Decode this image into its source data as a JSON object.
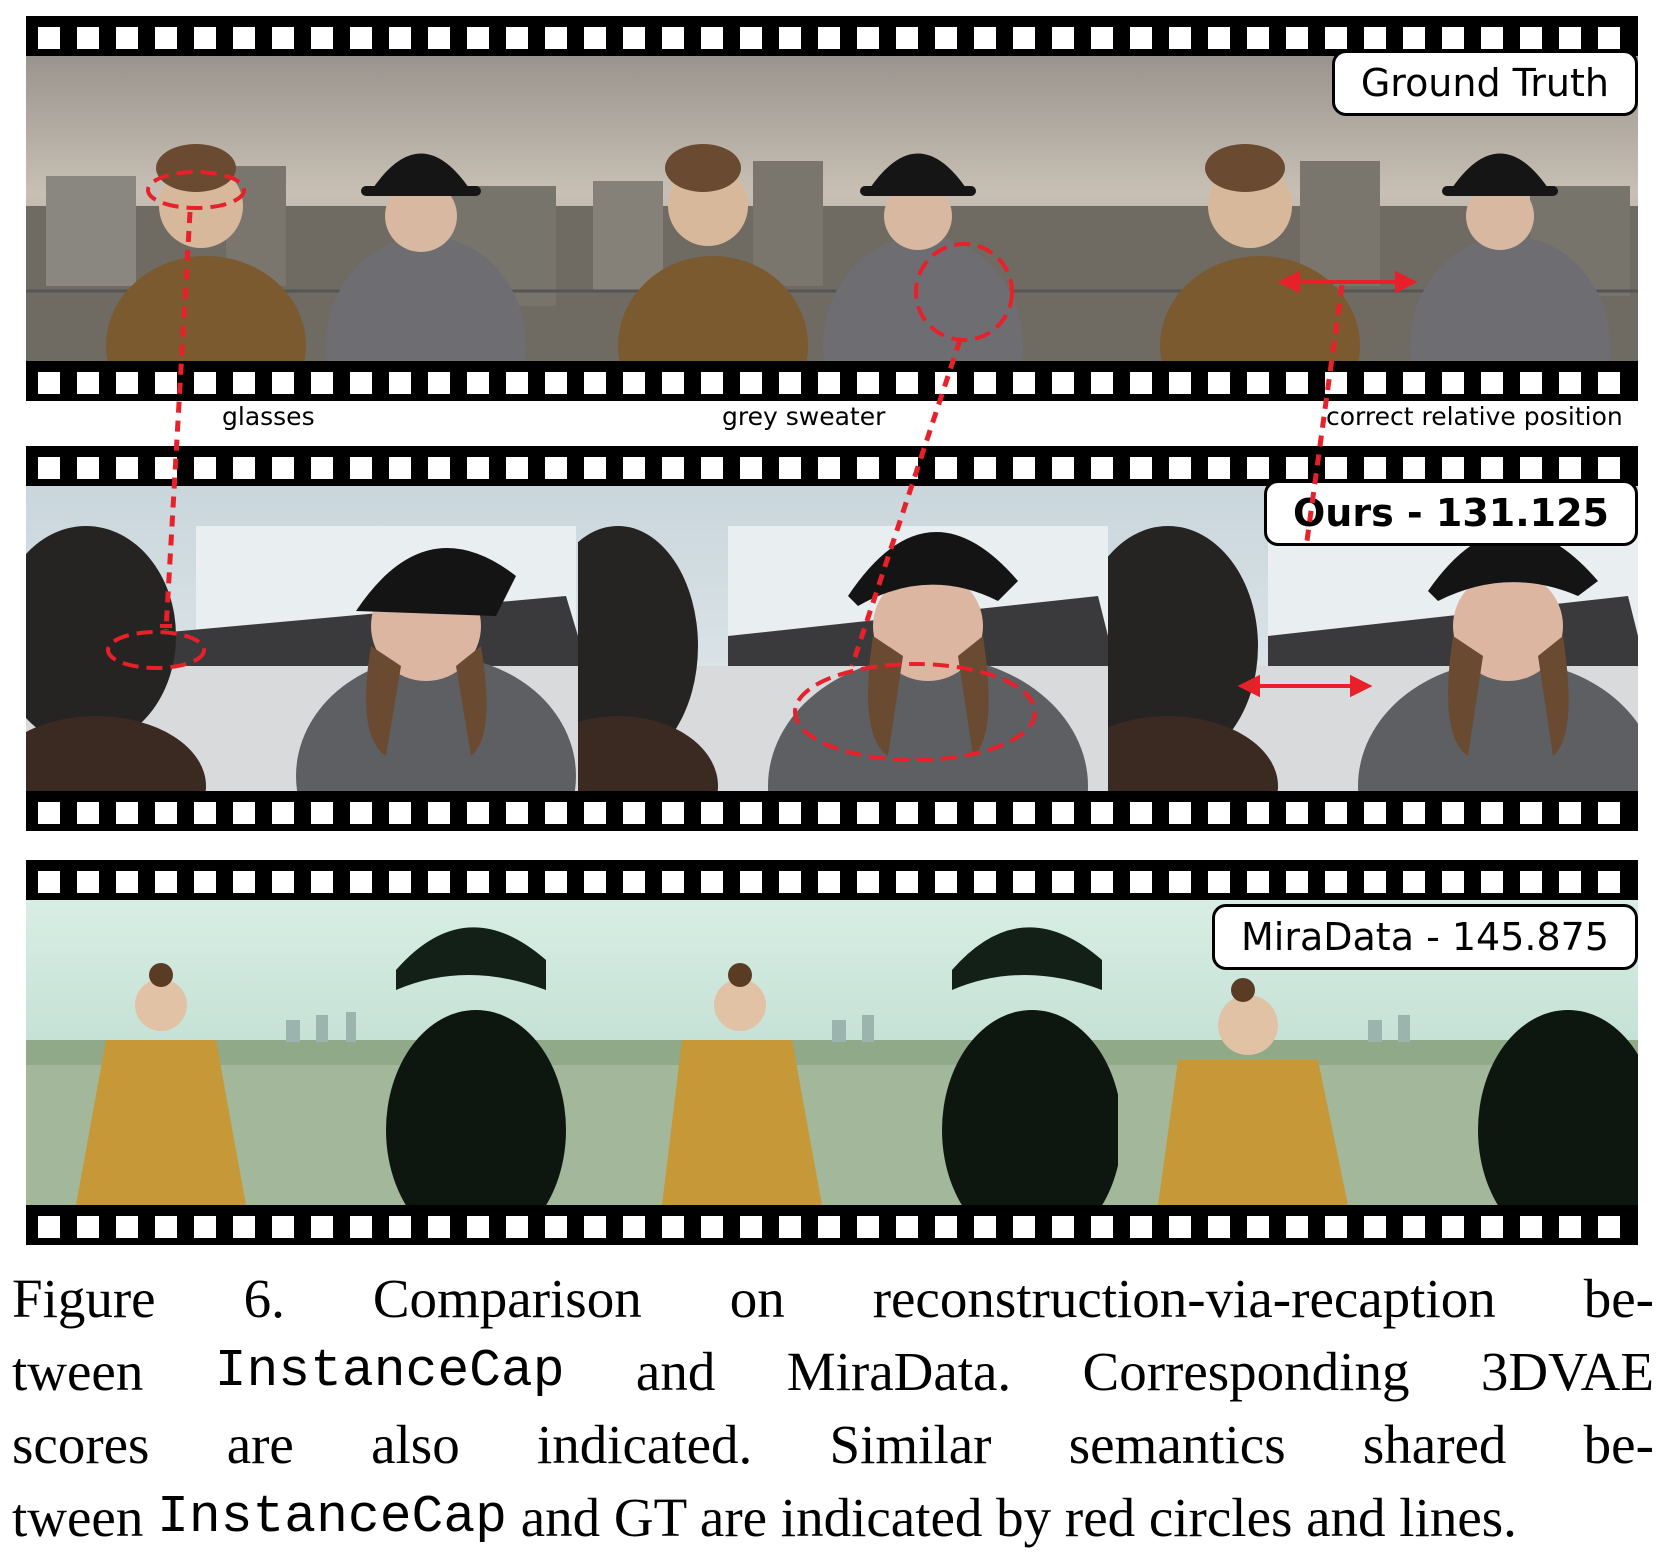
{
  "figure": {
    "labels": {
      "ground_truth": "Ground Truth",
      "ours": "Ours - 131.125",
      "miradata": "MiraData - 145.875"
    },
    "annotations": {
      "glasses": "glasses",
      "grey_sweater": "grey sweater",
      "relative_position": "correct relative position"
    },
    "accent_color": "#e8202a"
  },
  "caption": {
    "line1": [
      "Figure",
      "6.",
      "Comparison",
      "on",
      "reconstruction-via-recaption",
      "be-"
    ],
    "line2": {
      "w1": "tween",
      "code": "InstanceCap",
      "w2": "and",
      "w3": "MiraData.",
      "w4": "Corresponding",
      "w5": "3DVAE"
    },
    "line3": [
      "scores",
      "are",
      "also",
      "indicated.",
      "Similar",
      "semantics",
      "shared",
      "be-"
    ],
    "line4": {
      "w1": "tween",
      "code": "InstanceCap",
      "rest": "and GT are indicated by red circles and lines."
    }
  }
}
